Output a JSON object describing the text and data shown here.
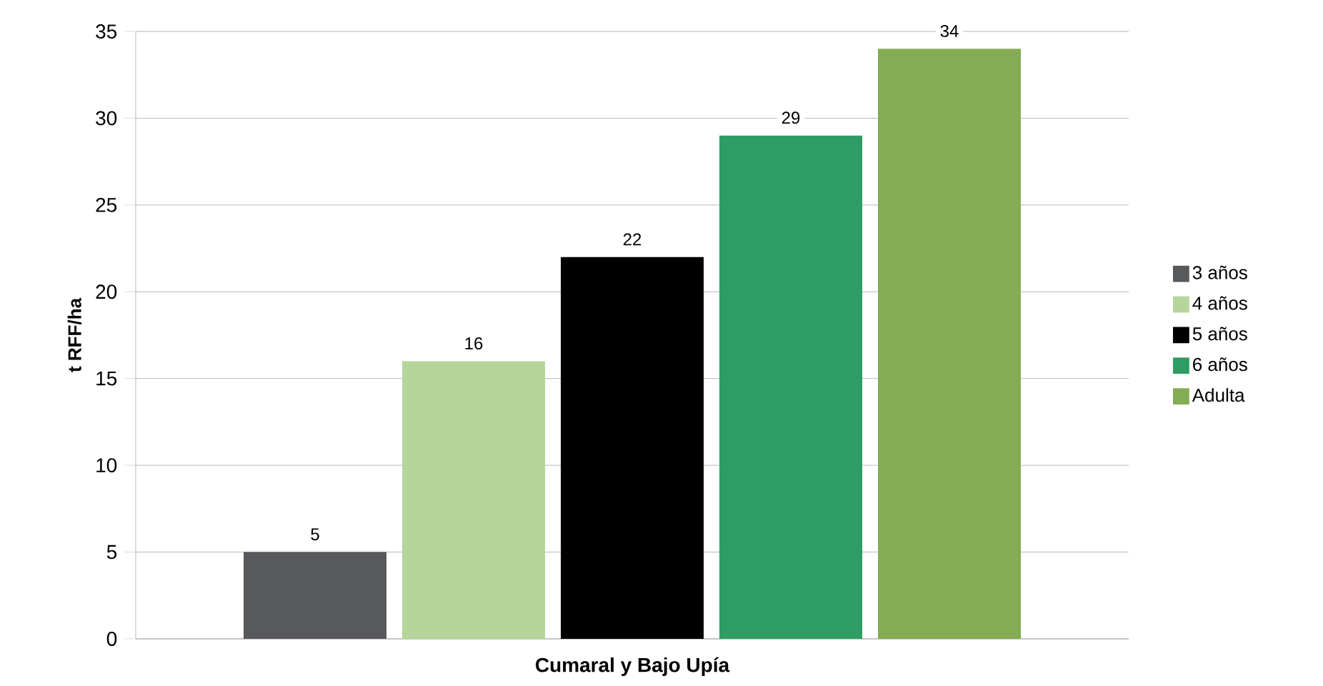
{
  "chart_data": {
    "type": "bar",
    "ylabel": "t RFF/ha",
    "categories": [
      "Cumaral y Bajo Upía"
    ],
    "series": [
      {
        "name": "3 años",
        "color": "#58595b",
        "values": [
          5
        ]
      },
      {
        "name": "4 años",
        "color": "#b5d69a",
        "values": [
          16
        ]
      },
      {
        "name": "5 años",
        "color": "#000000",
        "values": [
          22
        ]
      },
      {
        "name": "6 años",
        "color": "#2e9c63",
        "values": [
          29
        ]
      },
      {
        "name": "Adulta",
        "color": "#84ac52",
        "values": [
          34
        ]
      }
    ],
    "data_labels": true,
    "ylim": [
      0,
      35
    ],
    "yticks": [
      0,
      5,
      10,
      15,
      20,
      25,
      30,
      35
    ],
    "grid": "y",
    "legend": "right"
  }
}
